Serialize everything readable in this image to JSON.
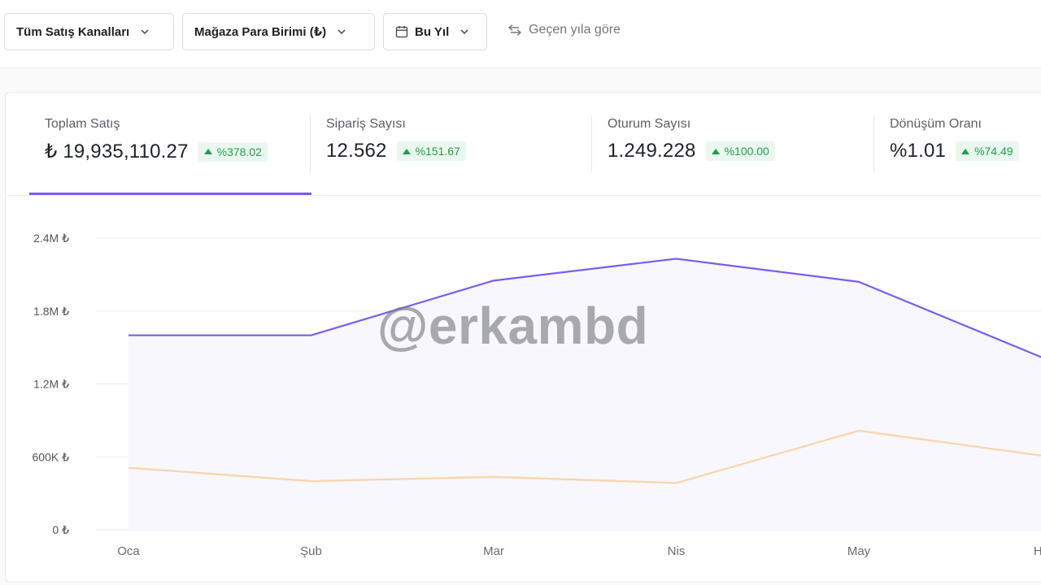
{
  "toolbar": {
    "channel_label": "Tüm Satış Kanalları",
    "currency_label": "Mağaza Para Birimi (₺)",
    "period_label": "Bu Yıl",
    "compare_label": "Geçen yıla göre"
  },
  "metrics": [
    {
      "label": "Toplam Satış",
      "value": "₺ 19,935,110.27",
      "change": "%378.02"
    },
    {
      "label": "Sipariş Sayısı",
      "value": "12.562",
      "change": "%151.67"
    },
    {
      "label": "Oturum Sayısı",
      "value": "1.249.228",
      "change": "%100.00"
    },
    {
      "label": "Dönüşüm Oranı",
      "value": "%1.01",
      "change": "%74.49"
    }
  ],
  "colors": {
    "accent": "#7b5cf0",
    "previous": "#f7d7b0",
    "positive": "#1e9e4e"
  },
  "watermark": "@erkambd",
  "chart_data": {
    "type": "area",
    "categories": [
      "Oca",
      "Şub",
      "Mar",
      "Nis",
      "May",
      "Ha"
    ],
    "y_ticks": [
      "0 ₺",
      "600K ₺",
      "1.2M ₺",
      "1.8M ₺",
      "2.4M ₺"
    ],
    "ylim": [
      0,
      2400000
    ],
    "series": [
      {
        "values": [
          1600000,
          1600000,
          2050000,
          2230000,
          2040000,
          1420000
        ],
        "color": "#7b5cf0"
      },
      {
        "values": [
          510000,
          400000,
          435000,
          385000,
          815000,
          610000
        ],
        "color": "#f7d7b0"
      }
    ],
    "grid": true
  }
}
